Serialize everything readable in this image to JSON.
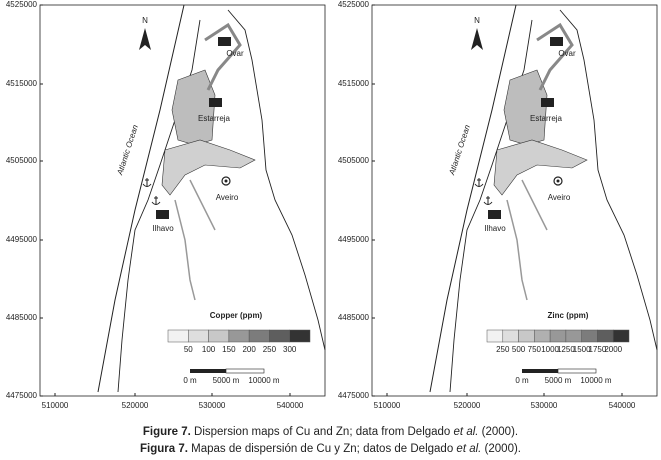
{
  "maps": [
    {
      "yticks": [
        "4525000",
        "4515000",
        "4505000",
        "4495000",
        "4485000",
        "4475000"
      ],
      "xticks": [
        "510000",
        "520000",
        "530000",
        "540000"
      ],
      "places": {
        "ocean": "Atlantic Ocean",
        "north": "N",
        "ovar": "Ovar",
        "estarreja": "Estarreja",
        "aveiro": "Aveiro",
        "ilhavo": "Ilhavo"
      },
      "legend": {
        "title": "Copper (ppm)",
        "labels": [
          "50",
          "100",
          "150",
          "200",
          "250",
          "300"
        ]
      },
      "scale": [
        "0 m",
        "5000 m",
        "10000 m"
      ]
    },
    {
      "yticks": [
        "4525000",
        "4515000",
        "4505000",
        "4495000",
        "4485000",
        "4475000"
      ],
      "xticks": [
        "510000",
        "520000",
        "530000",
        "540000"
      ],
      "places": {
        "ocean": "Atlantic Ocean",
        "north": "N",
        "ovar": "Ovar",
        "estarreja": "Estarreja",
        "aveiro": "Aveiro",
        "ilhavo": "Ilhavo"
      },
      "legend": {
        "title": "Zinc (ppm)",
        "labels": [
          "250",
          "500",
          "750",
          "1000",
          "1250",
          "1500",
          "1750",
          "2000"
        ]
      },
      "scale": [
        "0 m",
        "5000 m",
        "10000 m"
      ]
    }
  ],
  "caption": [
    {
      "label": "Figure 7.",
      "text": " Dispersion maps of Cu and Zn; data from Delgado ",
      "italic": "et al.",
      "end": " (2000)."
    },
    {
      "label": "Figura 7.",
      "text": " Mapas de dispersión de Cu y Zn; datos de Delgado ",
      "italic": "et al.",
      "end": " (2000)."
    }
  ]
}
